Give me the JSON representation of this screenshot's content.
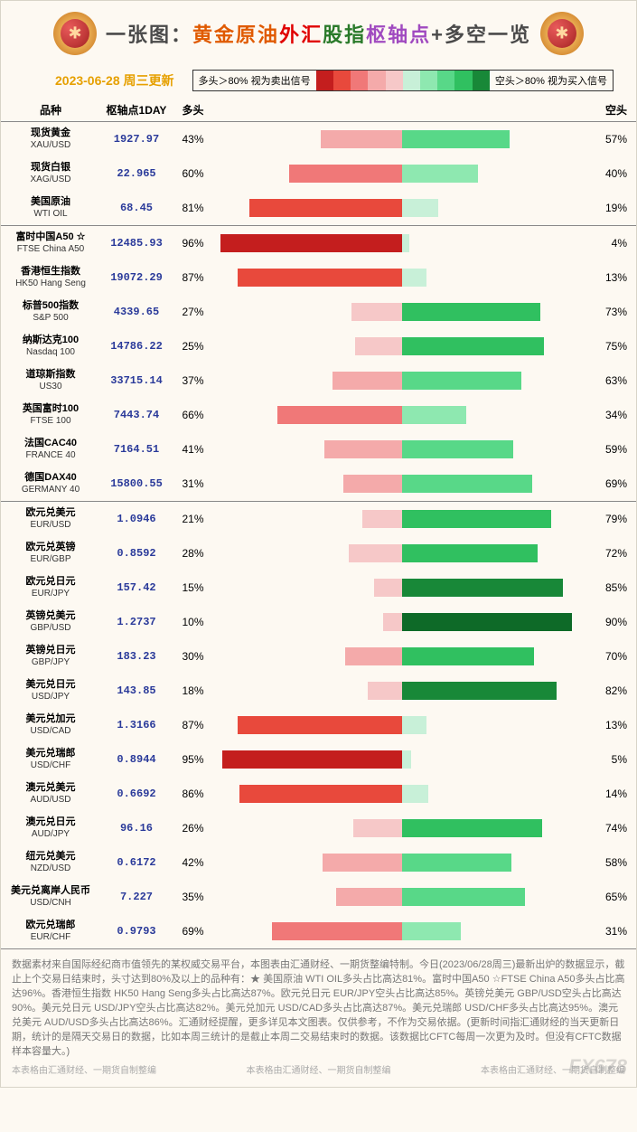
{
  "header": {
    "title_parts": [
      {
        "text": "一张图：",
        "color": "#4a4a4a"
      },
      {
        "text": "黄金原油",
        "color": "#e05a00"
      },
      {
        "text": "外汇",
        "color": "#e00000"
      },
      {
        "text": "股指",
        "color": "#2a7a2a"
      },
      {
        "text": "枢轴点",
        "color": "#a04ac0"
      },
      {
        "text": "+多空一览",
        "color": "#4a4a4a"
      }
    ]
  },
  "date_label": "2023-06-28 周三更新",
  "legend": {
    "long_label": "多头＞80%  视为卖出信号",
    "short_label": "空头＞80%  视为买入信号",
    "swatches": [
      "#c41e1e",
      "#e8493c",
      "#f07878",
      "#f4aaaa",
      "#f6c8c8",
      "#c8f0d8",
      "#8ee8b0",
      "#58d888",
      "#30c060",
      "#188838"
    ]
  },
  "columns": {
    "name": "品种",
    "pivot": "枢轴点1DAY",
    "long": "多头",
    "short": "空头"
  },
  "bar_colors": {
    "long": {
      "lt30": "#f6c8c8",
      "30_49": "#f4aaaa",
      "50_69": "#f07878",
      "70_79": "#e8493c",
      "80_89": "#e8493c",
      "ge90": "#c41e1e"
    },
    "short": {
      "lt30": "#c8f0d8",
      "30_49": "#8ee8b0",
      "50_69": "#58d888",
      "70_79": "#30c060",
      "80_89": "#188838",
      "ge90": "#0e6a28"
    }
  },
  "sections": [
    {
      "rows": [
        {
          "cn": "现货黄金",
          "en": "XAU/USD",
          "pivot": "1927.97",
          "long": 43,
          "short": 57
        },
        {
          "cn": "现货白银",
          "en": "XAG/USD",
          "pivot": "22.965",
          "long": 60,
          "short": 40
        },
        {
          "cn": "美国原油",
          "en": "WTI OIL",
          "pivot": "68.45",
          "long": 81,
          "short": 19
        }
      ]
    },
    {
      "rows": [
        {
          "cn": "富时中国A50 ☆",
          "en": "FTSE China A50",
          "pivot": "12485.93",
          "long": 96,
          "short": 4
        },
        {
          "cn": "香港恒生指数",
          "en": "HK50 Hang Seng",
          "pivot": "19072.29",
          "long": 87,
          "short": 13
        },
        {
          "cn": "标普500指数",
          "en": "S&P 500",
          "pivot": "4339.65",
          "long": 27,
          "short": 73
        },
        {
          "cn": "纳斯达克100",
          "en": "Nasdaq 100",
          "pivot": "14786.22",
          "long": 25,
          "short": 75
        },
        {
          "cn": "道琼斯指数",
          "en": "US30",
          "pivot": "33715.14",
          "long": 37,
          "short": 63
        },
        {
          "cn": "英国富时100",
          "en": "FTSE 100",
          "pivot": "7443.74",
          "long": 66,
          "short": 34
        },
        {
          "cn": "法国CAC40",
          "en": "FRANCE 40",
          "pivot": "7164.51",
          "long": 41,
          "short": 59
        },
        {
          "cn": "德国DAX40",
          "en": "GERMANY 40",
          "pivot": "15800.55",
          "long": 31,
          "short": 69
        }
      ]
    },
    {
      "rows": [
        {
          "cn": "欧元兑美元",
          "en": "EUR/USD",
          "pivot": "1.0946",
          "long": 21,
          "short": 79
        },
        {
          "cn": "欧元兑英镑",
          "en": "EUR/GBP",
          "pivot": "0.8592",
          "long": 28,
          "short": 72
        },
        {
          "cn": "欧元兑日元",
          "en": "EUR/JPY",
          "pivot": "157.42",
          "long": 15,
          "short": 85
        },
        {
          "cn": "英镑兑美元",
          "en": "GBP/USD",
          "pivot": "1.2737",
          "long": 10,
          "short": 90
        },
        {
          "cn": "英镑兑日元",
          "en": "GBP/JPY",
          "pivot": "183.23",
          "long": 30,
          "short": 70
        },
        {
          "cn": "美元兑日元",
          "en": "USD/JPY",
          "pivot": "143.85",
          "long": 18,
          "short": 82
        },
        {
          "cn": "美元兑加元",
          "en": "USD/CAD",
          "pivot": "1.3166",
          "long": 87,
          "short": 13
        },
        {
          "cn": "美元兑瑞郎",
          "en": "USD/CHF",
          "pivot": "0.8944",
          "long": 95,
          "short": 5
        },
        {
          "cn": "澳元兑美元",
          "en": "AUD/USD",
          "pivot": "0.6692",
          "long": 86,
          "short": 14
        },
        {
          "cn": "澳元兑日元",
          "en": "AUD/JPY",
          "pivot": "96.16",
          "long": 26,
          "short": 74
        },
        {
          "cn": "纽元兑美元",
          "en": "NZD/USD",
          "pivot": "0.6172",
          "long": 42,
          "short": 58
        },
        {
          "cn": "美元兑离岸人民币",
          "en": "USD/CNH",
          "pivot": "7.227",
          "long": 35,
          "short": 65
        },
        {
          "cn": "欧元兑瑞郎",
          "en": "EUR/CHF",
          "pivot": "0.9793",
          "long": 69,
          "short": 31
        }
      ]
    }
  ],
  "footer_text": "数据素材来自国际经纪商市值领先的某权威交易平台，本图表由汇通财经、一期货整编特制。今日(2023/06/28周三)最新出炉的数据显示，截止上个交易日结束时，头寸达到80%及以上的品种有：★ 美国原油 WTI OIL多头占比高达81%。富时中国A50 ☆FTSE China A50多头占比高达96%。香港恒生指数 HK50 Hang Seng多头占比高达87%。欧元兑日元 EUR/JPY空头占比高达85%。英镑兑美元 GBP/USD空头占比高达90%。美元兑日元 USD/JPY空头占比高达82%。美元兑加元 USD/CAD多头占比高达87%。美元兑瑞郎 USD/CHF多头占比高达95%。澳元兑美元 AUD/USD多头占比高达86%。汇通财经提醒，更多详见本文图表。仅供参考，不作为交易依据。(更新时间指汇通财经的当天更新日期，统计的是隔天交易日的数据，比如本周三统计的是截止本周二交易结束时的数据。该数据比CFTC每周一次更为及时。但没有CFTC数据样本容量大。)",
  "credit": "本表格由汇通财经、一期货自制整编",
  "watermark": "FX678"
}
